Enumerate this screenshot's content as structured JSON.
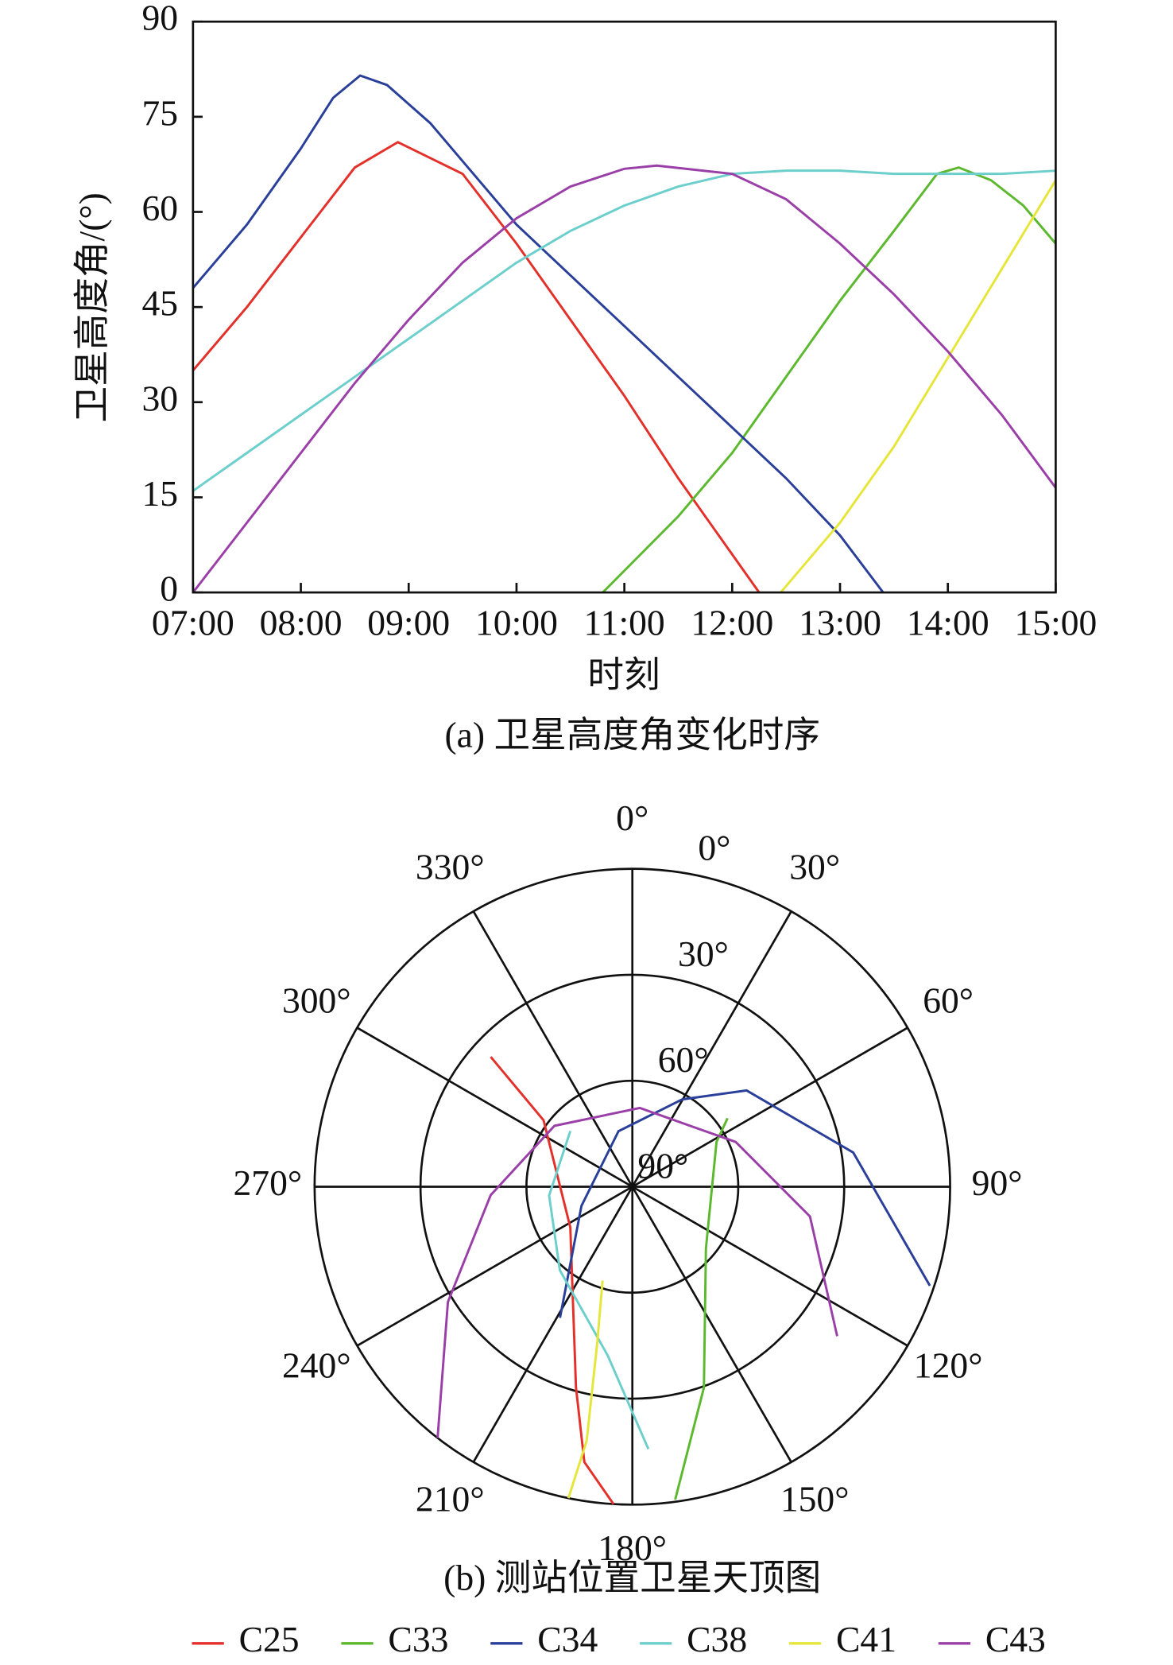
{
  "chart_data": [
    {
      "type": "line",
      "title": "(a) 卫星高度角变化时序",
      "xlabel": "时刻",
      "ylabel": "卫星高度角/(°)",
      "xlim": [
        7,
        15
      ],
      "ylim": [
        0,
        90
      ],
      "xticks": [
        {
          "value": 7,
          "label": "07:00"
        },
        {
          "value": 8,
          "label": "08:00"
        },
        {
          "value": 9,
          "label": "09:00"
        },
        {
          "value": 10,
          "label": "10:00"
        },
        {
          "value": 11,
          "label": "11:00"
        },
        {
          "value": 12,
          "label": "12:00"
        },
        {
          "value": 13,
          "label": "13:00"
        },
        {
          "value": 14,
          "label": "14:00"
        },
        {
          "value": 15,
          "label": "15:00"
        }
      ],
      "yticks": [
        0,
        15,
        30,
        45,
        60,
        75,
        90
      ],
      "series": [
        {
          "name": "C25",
          "color": "#e3302a",
          "x": [
            7,
            7.5,
            8,
            8.5,
            8.9,
            9.5,
            10,
            10.5,
            11,
            11.5,
            12,
            12.25
          ],
          "values": [
            35,
            45,
            56,
            67,
            71,
            66,
            55,
            43,
            31,
            18,
            6,
            0
          ]
        },
        {
          "name": "C33",
          "color": "#5cb82e",
          "x": [
            10.8,
            11.5,
            12,
            12.5,
            13,
            13.5,
            13.9,
            14.1,
            14.4,
            14.7,
            15
          ],
          "values": [
            0,
            12,
            22,
            34,
            46,
            57,
            66,
            67,
            65,
            61,
            55
          ]
        },
        {
          "name": "C34",
          "color": "#2a3f9a",
          "x": [
            7,
            7.5,
            8,
            8.3,
            8.55,
            8.8,
            9.2,
            9.5,
            10,
            10.5,
            11,
            11.5,
            12,
            12.5,
            13,
            13.4
          ],
          "values": [
            48,
            58,
            70,
            78,
            81.5,
            80,
            74,
            68,
            58,
            50,
            42,
            34,
            26,
            18,
            9,
            0
          ]
        },
        {
          "name": "C38",
          "color": "#6ccfcc",
          "x": [
            7,
            7.5,
            8,
            8.5,
            9,
            9.5,
            10,
            10.5,
            11,
            11.5,
            12,
            12.5,
            13,
            13.5,
            14,
            14.5,
            15
          ],
          "values": [
            16,
            22,
            28,
            34,
            40,
            46,
            52,
            57,
            61,
            64,
            66,
            66.5,
            66.5,
            66,
            66,
            66,
            66.5
          ]
        },
        {
          "name": "C41",
          "color": "#e6e63a",
          "x": [
            12.45,
            13,
            13.5,
            14,
            14.5,
            15
          ],
          "values": [
            0,
            11,
            23,
            37,
            51,
            65
          ]
        },
        {
          "name": "C43",
          "color": "#9b3fa8",
          "x": [
            7,
            7.5,
            8,
            8.5,
            9,
            9.5,
            10,
            10.5,
            11,
            11.3,
            12,
            12.5,
            13,
            13.5,
            14,
            14.5,
            15
          ],
          "values": [
            0,
            11,
            22,
            33,
            43,
            52,
            59,
            64,
            66.8,
            67.3,
            66,
            62,
            55,
            47,
            38,
            28,
            16.5
          ]
        }
      ]
    },
    {
      "type": "polar",
      "title": "(b) 测站位置卫星天顶图",
      "rlim": [
        90,
        0
      ],
      "thetaticks": [
        {
          "value": 0,
          "label": "0°"
        },
        {
          "value": 30,
          "label": "30°"
        },
        {
          "value": 60,
          "label": "60°"
        },
        {
          "value": 90,
          "label": "90°"
        },
        {
          "value": 120,
          "label": "120°"
        },
        {
          "value": 150,
          "label": "150°"
        },
        {
          "value": 180,
          "label": "180°"
        },
        {
          "value": 210,
          "label": "210°"
        },
        {
          "value": 240,
          "label": "240°"
        },
        {
          "value": 270,
          "label": "270°"
        },
        {
          "value": 300,
          "label": "300°"
        },
        {
          "value": 330,
          "label": "330°"
        }
      ],
      "rticks": [
        {
          "value": 0,
          "label": "0°"
        },
        {
          "value": 30,
          "label": "30°"
        },
        {
          "value": 60,
          "label": "60°"
        },
        {
          "value": 90,
          "label": "90°"
        }
      ],
      "series": [
        {
          "color": "#e3302a",
          "theta": [
            312.5,
            306.8,
            236.8,
            195.7,
            189.9,
            183.4
          ],
          "values": [
            35.6,
            58.6,
            69,
            31,
            10.9,
            0
          ]
        },
        {
          "color": "#5cb82e",
          "theta": [
            172.2,
            160.4,
            130,
            62,
            54.3
          ],
          "values": [
            0.6,
            29.6,
            62.8,
            63,
            56.8
          ]
        },
        {
          "color": "#2a3f9a",
          "theta": [
            208.9,
            249.4,
            346,
            29.8,
            49.9,
            81.2,
            108.4
          ],
          "values": [
            47.6,
            74.6,
            73.8,
            61.5,
            47.7,
            26.7,
            1.2
          ]
        },
        {
          "color": "#6ccfcc",
          "theta": [
            176.5,
            188.3,
            221,
            264,
            311.9
          ],
          "values": [
            15.6,
            41.7,
            58.7,
            66.3,
            66.4
          ]
        },
        {
          "color": "#e6e63a",
          "theta": [
            191.6,
            190.2,
            192.6,
            197.6
          ],
          "values": [
            0,
            16.9,
            44.2,
            62.1
          ]
        },
        {
          "color": "#9b3fa8",
          "theta": [
            217.8,
            238,
            266.6,
            308,
            5.4,
            66.6,
            99.5,
            126.1
          ],
          "values": [
            0,
            28.4,
            49.8,
            62,
            67.6,
            58.1,
            39,
            18.2
          ]
        }
      ]
    }
  ]
}
